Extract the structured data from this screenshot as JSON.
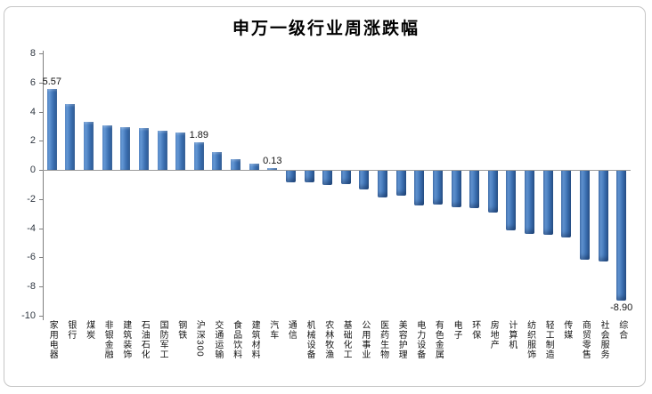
{
  "chart_data": {
    "type": "bar",
    "title": "申万一级行业周涨跌幅",
    "xlabel": "",
    "ylabel": "",
    "ylim": [
      -10,
      8
    ],
    "yticks": [
      8,
      6,
      4,
      2,
      0,
      -2,
      -4,
      -6,
      -8,
      -10
    ],
    "grid": false,
    "legend": "none",
    "bar_color": "#3c70b2",
    "frame_border_color": "#c6c6c6",
    "categories": [
      "家用电器",
      "银行",
      "煤炭",
      "非银金融",
      "建筑装饰",
      "石油石化",
      "国防军工",
      "钢铁",
      "沪深300",
      "交通运输",
      "食品饮料",
      "建筑材料",
      "汽车",
      "通信",
      "机械设备",
      "农林牧渔",
      "基础化工",
      "公用事业",
      "医药生物",
      "美容护理",
      "电力设备",
      "有色金属",
      "电子",
      "环保",
      "房地产",
      "计算机",
      "纺织服饰",
      "轻工制造",
      "传媒",
      "商贸零售",
      "社会服务",
      "综合"
    ],
    "values": [
      5.57,
      4.5,
      3.3,
      3.05,
      2.95,
      2.9,
      2.7,
      2.55,
      1.89,
      1.2,
      0.75,
      0.42,
      0.13,
      -0.8,
      -0.78,
      -1.0,
      -0.92,
      -1.25,
      -1.8,
      -1.72,
      -2.35,
      -2.3,
      -2.5,
      -2.55,
      -2.85,
      -4.1,
      -4.3,
      -4.4,
      -4.55,
      -6.1,
      -6.2,
      -8.9
    ],
    "data_labels": [
      {
        "index": 0,
        "category": "家用电器",
        "text": "5.57"
      },
      {
        "index": 8,
        "category": "沪深300",
        "text": "1.89"
      },
      {
        "index": 12,
        "category": "汽车",
        "text": "0.13"
      },
      {
        "index": 31,
        "category": "综合",
        "text": "-8.90"
      }
    ]
  }
}
